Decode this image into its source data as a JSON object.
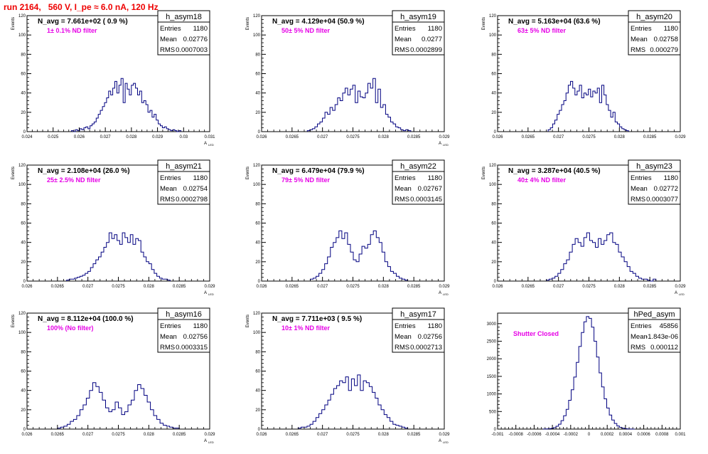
{
  "page": {
    "title": "run 2164,   560 V, I_pe ≈ 6.0 nA, 120 Hz"
  },
  "chart_data": [
    {
      "type": "bar",
      "name": "h_asym18",
      "navg": "N_avg = 7.661e+02 ( 0.9 %)",
      "filter": "1± 0.1% ND filter",
      "ylabel": "Events",
      "xlabel": "A",
      "xlabel_sub": "LED",
      "stats": {
        "entries": "1180",
        "mean": "0.02776",
        "rms": "0.0007003"
      },
      "xlim": [
        0.024,
        0.031
      ],
      "ylim": [
        0,
        120
      ],
      "xticks": [
        0.024,
        0.025,
        0.026,
        0.027,
        0.028,
        0.029,
        0.03,
        0.031
      ],
      "xtick_labels": [
        "0.024",
        "0.025",
        "0.026",
        "0.027",
        "0.028",
        "0.029",
        "0.03",
        "0.031"
      ],
      "yticks": [
        0,
        20,
        40,
        60,
        80,
        100,
        120
      ],
      "bin_edges_range": [
        0.0257,
        0.0299
      ],
      "values": [
        1,
        0,
        2,
        1,
        3,
        2,
        4,
        5,
        3,
        6,
        8,
        10,
        14,
        18,
        22,
        26,
        30,
        35,
        42,
        38,
        45,
        52,
        40,
        48,
        55,
        30,
        50,
        44,
        38,
        48,
        50,
        45,
        38,
        42,
        30,
        32,
        28,
        20,
        22,
        15,
        18,
        12,
        8,
        6,
        4,
        5,
        3,
        2,
        1,
        2,
        1,
        0,
        1
      ]
    },
    {
      "type": "bar",
      "name": "h_asym19",
      "navg": "N_avg = 4.129e+04 (50.9 %)",
      "filter": "50± 5% ND filter",
      "ylabel": "Events",
      "xlabel": "A",
      "xlabel_sub": "LED",
      "stats": {
        "entries": "1180",
        "mean": "0.0277",
        "rms": "0.0002899"
      },
      "xlim": [
        0.026,
        0.029
      ],
      "ylim": [
        0,
        120
      ],
      "xticks": [
        0.026,
        0.0265,
        0.027,
        0.0275,
        0.028,
        0.0285,
        0.029
      ],
      "xtick_labels": [
        "0.026",
        "0.0265",
        "0.027",
        "0.0275",
        "0.028",
        "0.0285",
        "0.029"
      ],
      "yticks": [
        0,
        20,
        40,
        60,
        80,
        100,
        120
      ],
      "bin_edges_range": [
        0.02675,
        0.02845
      ],
      "values": [
        1,
        2,
        3,
        5,
        8,
        10,
        14,
        20,
        18,
        25,
        22,
        28,
        35,
        32,
        40,
        45,
        38,
        44,
        48,
        30,
        42,
        36,
        35,
        40,
        50,
        45,
        55,
        30,
        44,
        25,
        28,
        18,
        15,
        10,
        8,
        5,
        4,
        2,
        1,
        2,
        1
      ]
    },
    {
      "type": "bar",
      "name": "h_asym20",
      "navg": "N_avg = 5.163e+04 (63.6 %)",
      "filter": "63± 5% ND filter",
      "ylabel": "Events",
      "xlabel": "",
      "xlabel_sub": "",
      "stats": {
        "entries": "1180",
        "mean": "0.02758",
        "rms": "0.000279"
      },
      "xlim": [
        0.026,
        0.029
      ],
      "ylim": [
        0,
        120
      ],
      "xticks": [
        0.026,
        0.0265,
        0.027,
        0.0275,
        0.028,
        0.0285,
        0.029
      ],
      "xtick_labels": [
        "0.026",
        "0.0265",
        "0.027",
        "0.0275",
        "0.028",
        "0.0285",
        "0.029"
      ],
      "yticks": [
        0,
        20,
        40,
        60,
        80,
        100,
        120
      ],
      "bin_edges_range": [
        0.02683,
        0.02815
      ],
      "values": [
        2,
        4,
        8,
        12,
        18,
        22,
        28,
        32,
        40,
        48,
        52,
        45,
        38,
        42,
        48,
        35,
        40,
        38,
        44,
        36,
        42,
        40,
        45,
        30,
        48,
        38,
        28,
        22,
        15,
        20,
        10,
        8,
        5,
        3,
        2,
        1
      ]
    },
    {
      "type": "bar",
      "name": "h_asym21",
      "navg": "N_avg = 2.108e+04 (26.0 %)",
      "filter": "25± 2.5% ND filter",
      "ylabel": "Events",
      "xlabel": "A",
      "xlabel_sub": "LED",
      "stats": {
        "entries": "1180",
        "mean": "0.02754",
        "rms": "0.0002798"
      },
      "xlim": [
        0.026,
        0.029
      ],
      "ylim": [
        0,
        120
      ],
      "xticks": [
        0.026,
        0.0265,
        0.027,
        0.0275,
        0.028,
        0.0285,
        0.029
      ],
      "xtick_labels": [
        "0.026",
        "0.0265",
        "0.027",
        "0.0275",
        "0.028",
        "0.0285",
        "0.029"
      ],
      "yticks": [
        0,
        20,
        40,
        60,
        80,
        100,
        120
      ],
      "bin_edges_range": [
        0.02665,
        0.02835
      ],
      "values": [
        1,
        2,
        2,
        3,
        4,
        5,
        6,
        8,
        10,
        14,
        18,
        22,
        25,
        30,
        35,
        40,
        50,
        44,
        48,
        42,
        38,
        50,
        45,
        40,
        48,
        38,
        44,
        42,
        30,
        25,
        20,
        18,
        12,
        8,
        5,
        3,
        2,
        2,
        1
      ]
    },
    {
      "type": "bar",
      "name": "h_asym22",
      "navg": "N_avg = 6.479e+04 (79.9 %)",
      "filter": "79± 5% ND filter",
      "ylabel": "Events",
      "xlabel": "A",
      "xlabel_sub": "LED",
      "stats": {
        "entries": "1180",
        "mean": "0.02767",
        "rms": "0.0003145"
      },
      "xlim": [
        0.026,
        0.029
      ],
      "ylim": [
        0,
        120
      ],
      "xticks": [
        0.026,
        0.0265,
        0.027,
        0.0275,
        0.028,
        0.0285,
        0.029
      ],
      "xtick_labels": [
        "0.026",
        "0.0265",
        "0.027",
        "0.0275",
        "0.028",
        "0.0285",
        "0.029"
      ],
      "yticks": [
        0,
        20,
        40,
        60,
        80,
        100,
        120
      ],
      "bin_edges_range": [
        0.0268,
        0.0284
      ],
      "values": [
        2,
        3,
        5,
        8,
        12,
        18,
        25,
        35,
        40,
        45,
        52,
        44,
        50,
        38,
        30,
        22,
        20,
        28,
        36,
        34,
        38,
        48,
        52,
        45,
        40,
        30,
        20,
        15,
        10,
        8,
        5,
        3,
        2,
        1
      ]
    },
    {
      "type": "bar",
      "name": "h_asym23",
      "navg": "N_avg = 3.287e+04 (40.5 %)",
      "filter": "40± 4% ND filter",
      "ylabel": "Events",
      "xlabel": "A",
      "xlabel_sub": "LED",
      "stats": {
        "entries": "1180",
        "mean": "0.02772",
        "rms": "0.0003077"
      },
      "xlim": [
        0.026,
        0.029
      ],
      "ylim": [
        0,
        120
      ],
      "xticks": [
        0.026,
        0.0265,
        0.027,
        0.0275,
        0.028,
        0.0285,
        0.029
      ],
      "xtick_labels": [
        "0.026",
        "0.0265",
        "0.027",
        "0.0275",
        "0.028",
        "0.0285",
        "0.029"
      ],
      "yticks": [
        0,
        20,
        40,
        60,
        80,
        100,
        120
      ],
      "bin_edges_range": [
        0.0268,
        0.0286
      ],
      "values": [
        1,
        2,
        3,
        5,
        8,
        12,
        18,
        22,
        30,
        38,
        44,
        40,
        36,
        45,
        50,
        42,
        40,
        35,
        44,
        38,
        42,
        48,
        50,
        40,
        38,
        30,
        25,
        20,
        15,
        10,
        8,
        5,
        3,
        2,
        2,
        1,
        0,
        2
      ]
    },
    {
      "type": "bar",
      "name": "h_asym16",
      "navg": "N_avg = 8.112e+04 (100.0 %)",
      "filter": "100% (No filter)",
      "ylabel": "Events",
      "xlabel": "A",
      "xlabel_sub": "LED",
      "stats": {
        "entries": "1180",
        "mean": "0.02756",
        "rms": "0.0003315"
      },
      "xlim": [
        0.026,
        0.029
      ],
      "ylim": [
        0,
        120
      ],
      "xticks": [
        0.026,
        0.0265,
        0.027,
        0.0275,
        0.028,
        0.0285,
        0.029
      ],
      "xtick_labels": [
        "0.026",
        "0.0265",
        "0.027",
        "0.0275",
        "0.028",
        "0.0285",
        "0.029"
      ],
      "yticks": [
        0,
        20,
        40,
        60,
        80,
        100,
        120
      ],
      "bin_edges_range": [
        0.0265,
        0.0285
      ],
      "values": [
        1,
        2,
        3,
        5,
        8,
        10,
        14,
        20,
        25,
        32,
        40,
        48,
        44,
        38,
        30,
        22,
        18,
        20,
        28,
        22,
        15,
        18,
        25,
        30,
        40,
        46,
        42,
        35,
        28,
        20,
        14,
        10,
        6,
        4,
        3,
        2,
        1,
        1
      ]
    },
    {
      "type": "bar",
      "name": "h_asym17",
      "navg": "N_avg = 7.711e+03 ( 9.5 %)",
      "filter": "10± 1% ND filter",
      "ylabel": "Events",
      "xlabel": "A",
      "xlabel_sub": "LED",
      "stats": {
        "entries": "1180",
        "mean": "0.02756",
        "rms": "0.0002713"
      },
      "xlim": [
        0.026,
        0.029
      ],
      "ylim": [
        0,
        120
      ],
      "xticks": [
        0.026,
        0.0265,
        0.027,
        0.0275,
        0.028,
        0.0285,
        0.029
      ],
      "xtick_labels": [
        "0.026",
        "0.0265",
        "0.027",
        "0.0275",
        "0.028",
        "0.0285",
        "0.029"
      ],
      "yticks": [
        0,
        20,
        40,
        60,
        80,
        100,
        120
      ],
      "bin_edges_range": [
        0.0266,
        0.0284
      ],
      "values": [
        1,
        2,
        2,
        3,
        5,
        8,
        12,
        16,
        20,
        25,
        30,
        36,
        42,
        45,
        50,
        48,
        54,
        40,
        52,
        45,
        56,
        40,
        50,
        48,
        44,
        38,
        32,
        25,
        20,
        15,
        12,
        8,
        5,
        4,
        3,
        2,
        1
      ]
    },
    {
      "type": "bar",
      "name": "hPed_asym",
      "navg": "",
      "filter": "Shutter Closed",
      "ylabel": "",
      "xlabel": "",
      "xlabel_sub": "",
      "stats": {
        "entries": "45856",
        "mean": "-1.843e-06",
        "rms": "0.000112"
      },
      "xlim": [
        -0.001,
        0.001
      ],
      "ylim": [
        0,
        3300
      ],
      "xticks": [
        -0.001,
        -0.0008,
        -0.0006,
        -0.0004,
        -0.0002,
        0,
        0.0002,
        0.0004,
        0.0006,
        0.0008,
        0.001
      ],
      "xtick_labels": [
        "-0.001",
        "-0.0008",
        "-0.0006",
        "-0.0004",
        "-0.0002",
        "0",
        "0.0002",
        "0.0004",
        "0.0006",
        "0.0008",
        "0.001"
      ],
      "yticks": [
        0,
        500,
        1000,
        1500,
        2000,
        2500,
        3000
      ],
      "bin_edges_range": [
        -0.0005,
        0.0005
      ],
      "values": [
        2,
        5,
        10,
        20,
        40,
        80,
        140,
        240,
        380,
        560,
        820,
        1120,
        1480,
        1900,
        2350,
        2750,
        3050,
        3200,
        3150,
        2900,
        2500,
        2050,
        1600,
        1200,
        860,
        600,
        400,
        260,
        160,
        90,
        50,
        25,
        12,
        6,
        3,
        1
      ]
    }
  ]
}
